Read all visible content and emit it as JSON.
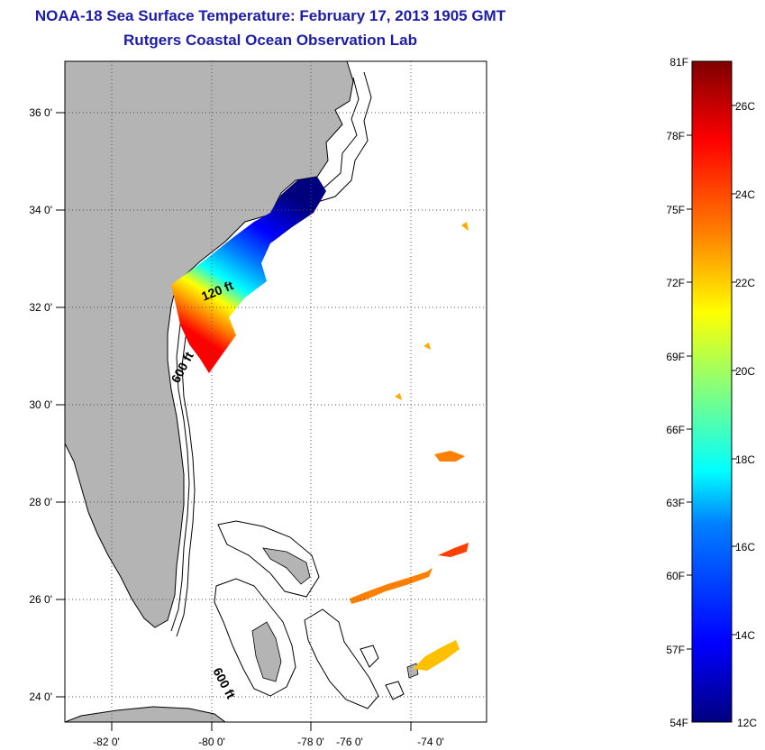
{
  "title": {
    "line1": "NOAA-18 Sea Surface Temperature:  February 17, 2013 1905 GMT",
    "line2": "Rutgers Coastal Ocean Observation Lab"
  },
  "map": {
    "lon_ticks": [
      "-82 0'",
      "-80 0'",
      "-78 0'",
      "-76 0'",
      "-74 0'"
    ],
    "lat_ticks": [
      "36 0'",
      "34 0'",
      "32 0'",
      "30 0'",
      "28 0'",
      "26 0'",
      "24 0'"
    ],
    "contour_labels": [
      "120 ft",
      "600 ft",
      "600 ft"
    ],
    "colors": {
      "land": "#b4b4b4",
      "water": "#ffffff",
      "grid": "#555555"
    }
  },
  "colorbar": {
    "f_labels": [
      "81F",
      "78F",
      "75F",
      "72F",
      "69F",
      "66F",
      "63F",
      "60F",
      "57F",
      "54F"
    ],
    "c_labels": [
      "26C",
      "24C",
      "22C",
      "20C",
      "18C",
      "16C",
      "14C",
      "12C"
    ],
    "range_c": [
      12,
      27
    ]
  }
}
